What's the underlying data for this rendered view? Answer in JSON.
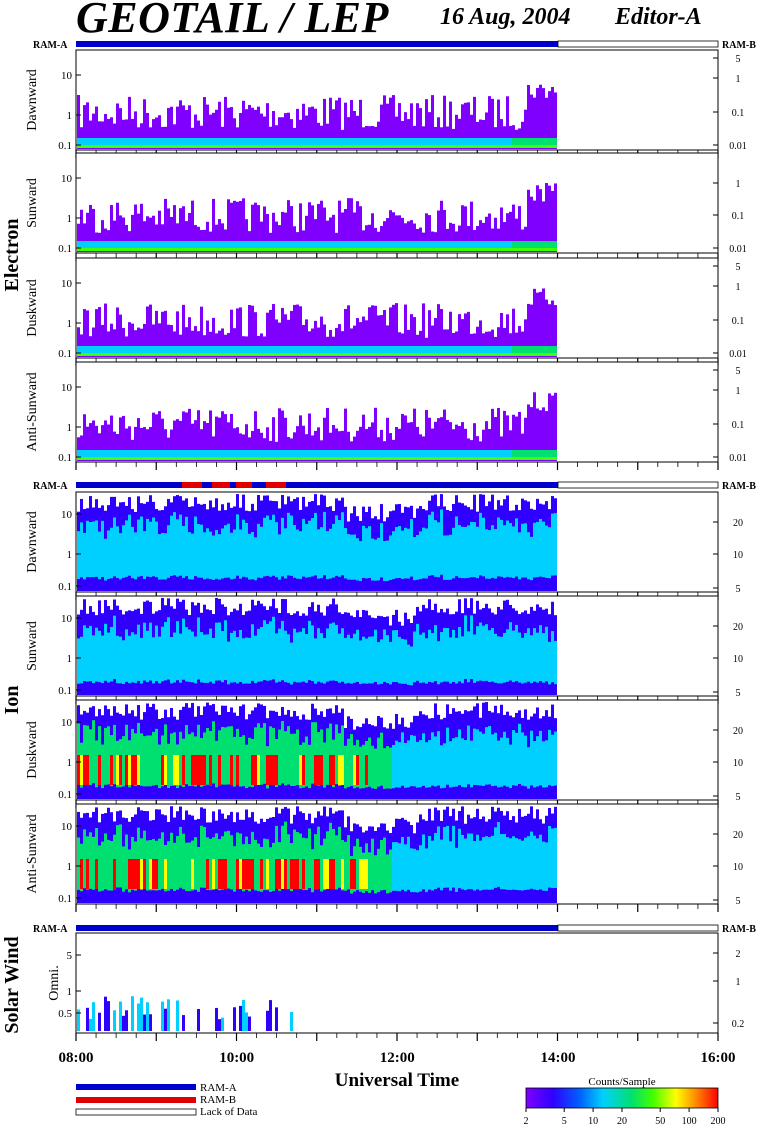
{
  "header": {
    "instrument": "GEOTAIL / LEP",
    "date": "16 Aug, 2004",
    "editor": "Editor-A"
  },
  "species_labels": {
    "electron": "Electron",
    "ion": "Ion",
    "solar_wind": "Solar Wind"
  },
  "ram_labels": {
    "left": "RAM-A",
    "right": "RAM-B"
  },
  "x_axis": {
    "label": "Universal Time",
    "ticks": [
      "08:00",
      "10:00",
      "12:00",
      "14:00",
      "16:00"
    ],
    "data_end": "14:00"
  },
  "legend": {
    "ram_a": "RAM-A",
    "ram_b": "RAM-B",
    "lack": "Lack of Data",
    "ram_a_color": "#0000cc",
    "ram_b_color": "#e00000"
  },
  "colorbar": {
    "title": "Counts/Sample",
    "ticks": [
      "2",
      "5",
      "10",
      "20",
      "50",
      "100",
      "200"
    ],
    "colors": [
      "#7f00ff",
      "#3000ff",
      "#0060ff",
      "#00d0ff",
      "#00e070",
      "#40ff00",
      "#ffff00",
      "#ff9000",
      "#ff0000"
    ]
  },
  "chart_data": {
    "type": "heatmap",
    "x_range": [
      "08:00",
      "16:00"
    ],
    "panels": [
      {
        "group": "Electron",
        "label": "Dawnward",
        "left_ticks": [
          "10",
          "1",
          "0.1"
        ],
        "right_ticks": [
          "5",
          "1",
          "0.1",
          "0.01"
        ]
      },
      {
        "group": "Electron",
        "label": "Sunward",
        "left_ticks": [
          "10",
          "1",
          "0.1"
        ],
        "right_ticks": [
          "1",
          "0.1",
          "0.01"
        ]
      },
      {
        "group": "Electron",
        "label": "Duskward",
        "left_ticks": [
          "10",
          "1",
          "0.1"
        ],
        "right_ticks": [
          "5",
          "1",
          "0.1",
          "0.01"
        ]
      },
      {
        "group": "Electron",
        "label": "Anti-Sunward",
        "left_ticks": [
          "10",
          "1",
          "0.1"
        ],
        "right_ticks": [
          "5",
          "1",
          "0.1",
          "0.01"
        ]
      },
      {
        "group": "Ion",
        "label": "Dawnward",
        "left_ticks": [
          "10",
          "1",
          "0.1"
        ],
        "right_ticks": [
          "20",
          "10",
          "5"
        ]
      },
      {
        "group": "Ion",
        "label": "Sunward",
        "left_ticks": [
          "10",
          "1",
          "0.1"
        ],
        "right_ticks": [
          "20",
          "10",
          "5"
        ]
      },
      {
        "group": "Ion",
        "label": "Duskward",
        "left_ticks": [
          "10",
          "1",
          "0.1"
        ],
        "right_ticks": [
          "20",
          "10",
          "5"
        ]
      },
      {
        "group": "Ion",
        "label": "Anti-Sunward",
        "left_ticks": [
          "10",
          "1",
          "0.1"
        ],
        "right_ticks": [
          "20",
          "10",
          "5"
        ]
      },
      {
        "group": "Solar Wind",
        "label": "Omni.",
        "left_ticks": [
          "5",
          "1",
          "0.5"
        ],
        "right_ticks": [
          "2",
          "1",
          "0.2"
        ]
      }
    ]
  }
}
